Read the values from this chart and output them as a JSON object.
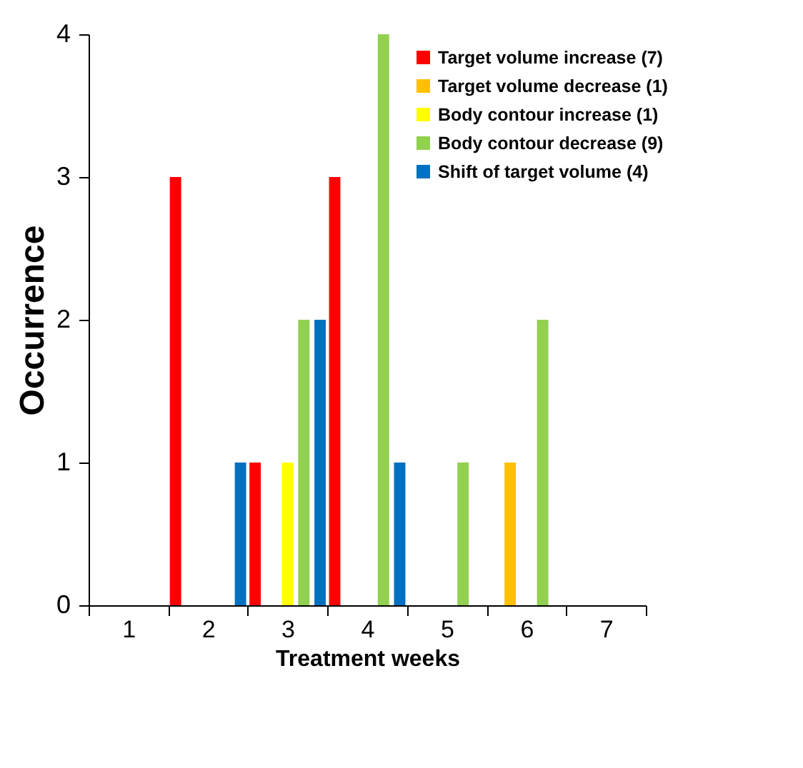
{
  "chart_data": {
    "type": "bar",
    "xlabel": "Treatment weeks",
    "ylabel": "Occurrence",
    "categories": [
      "1",
      "2",
      "3",
      "4",
      "5",
      "6",
      "7"
    ],
    "series": [
      {
        "name": "Target volume increase (7)",
        "color": "#ff0000",
        "values": [
          0,
          3,
          1,
          3,
          0,
          0,
          0
        ]
      },
      {
        "name": "Target volume decrease (1)",
        "color": "#ffc000",
        "values": [
          0,
          0,
          0,
          0,
          0,
          1,
          0
        ]
      },
      {
        "name": "Body contour increase (1)",
        "color": "#ffff00",
        "values": [
          0,
          0,
          1,
          0,
          0,
          0,
          0
        ]
      },
      {
        "name": "Body contour decrease (9)",
        "color": "#92d050",
        "values": [
          0,
          0,
          2,
          4,
          1,
          2,
          0
        ]
      },
      {
        "name": "Shift of target volume (4)",
        "color": "#0070c0",
        "values": [
          0,
          1,
          2,
          1,
          0,
          0,
          0
        ]
      }
    ],
    "ylim": [
      0,
      4
    ],
    "yticks": [
      0,
      1,
      2,
      3,
      4
    ],
    "grid": false,
    "legend": "top right"
  }
}
